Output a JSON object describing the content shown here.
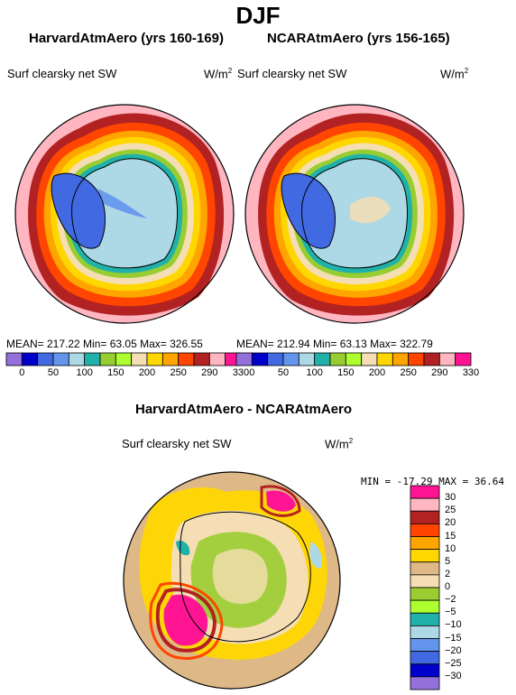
{
  "title": "DJF",
  "panels": [
    {
      "model_title": "HarvardAtmAero (yrs 160-169)",
      "variable": "Surf clearsky net SW",
      "units_base": "W/m",
      "units_exp": "2",
      "stats": "MEAN= 217.22   Min=    63.05   Max=  326.55"
    },
    {
      "model_title": "NCARAtmAero (yrs 156-165)",
      "variable": "Surf clearsky net SW",
      "units_base": "W/m",
      "units_exp": "2",
      "stats": "MEAN= 212.94   Min=    63.13   Max=  322.79"
    }
  ],
  "colorbar_top": {
    "colors": [
      "#9370DB",
      "#0000CD",
      "#4169E1",
      "#6495ED",
      "#ADD8E6",
      "#20B2AA",
      "#98CD32",
      "#ADFF2F",
      "#F5DEB3",
      "#FFD700",
      "#FFA500",
      "#FF4500",
      "#B22222",
      "#FFB6C1",
      "#FF1493"
    ],
    "labels": [
      "0",
      "50",
      "100",
      "150",
      "200",
      "250",
      "290",
      "330"
    ]
  },
  "diff": {
    "title": "HarvardAtmAero - NCARAtmAero",
    "variable": "Surf clearsky net SW",
    "units_base": "W/m",
    "units_exp": "2",
    "stats": "MIN = -17.29  MAX =  36.64",
    "colorbar": {
      "colors": [
        "#FF1493",
        "#FFB6C1",
        "#B22222",
        "#FF4500",
        "#FFA500",
        "#FFD700",
        "#DEB887",
        "#F5DEB3",
        "#9ACD32",
        "#ADFF2F",
        "#20B2AA",
        "#ADD8E6",
        "#6495ED",
        "#4169E1",
        "#0000CD",
        "#9370DB"
      ],
      "labels": [
        "30",
        "25",
        "20",
        "15",
        "10",
        "5",
        "2",
        "0",
        "−2",
        "−5",
        "−10",
        "−15",
        "−20",
        "−25",
        "−30"
      ]
    }
  }
}
